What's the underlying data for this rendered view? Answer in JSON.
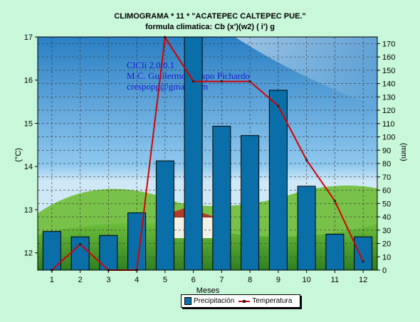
{
  "title_line1": "CLIMOGRAMA *      11    * \"ACATEPEC  CALTEPEC  PUE.\"",
  "title_line2": "formula climatica: Cb  (x')(w2) ( i') g",
  "watermark": [
    "ClCli 2.0.0.1",
    "M.C. Guillermo Crespo Pichardo",
    "crespopg@gmail.com"
  ],
  "colors": {
    "bar": "#0a6fa8",
    "line": "#d40000",
    "background": "#c9f7d9"
  },
  "chart_data": {
    "type": "bar+line",
    "categories": [
      "1",
      "2",
      "3",
      "4",
      "5",
      "6",
      "7",
      "8",
      "9",
      "10",
      "11",
      "12"
    ],
    "xlabel": "Meses",
    "ylabel_left": "(°C)",
    "ylabel_right": "(mm)",
    "ylim_left": [
      11.6,
      17
    ],
    "ylim_right": [
      0,
      175
    ],
    "yticks_left": [
      12,
      13,
      14,
      15,
      16,
      17
    ],
    "yticks_right": [
      0,
      10,
      20,
      30,
      40,
      50,
      60,
      70,
      80,
      90,
      100,
      110,
      120,
      130,
      140,
      150,
      160,
      170
    ],
    "grid": true,
    "legend_position": "bottom",
    "series": [
      {
        "name": "Precipitación",
        "type": "bar",
        "axis": "right",
        "values": [
          29,
          25,
          26,
          43,
          82,
          176,
          108,
          101,
          135,
          63,
          27,
          25
        ]
      },
      {
        "name": "Temperatura",
        "type": "line",
        "axis": "left",
        "values": [
          11.6,
          12.2,
          11.6,
          11.6,
          16.99,
          15.97,
          15.97,
          15.97,
          15.4,
          14.15,
          13.2,
          11.8
        ]
      }
    ]
  }
}
